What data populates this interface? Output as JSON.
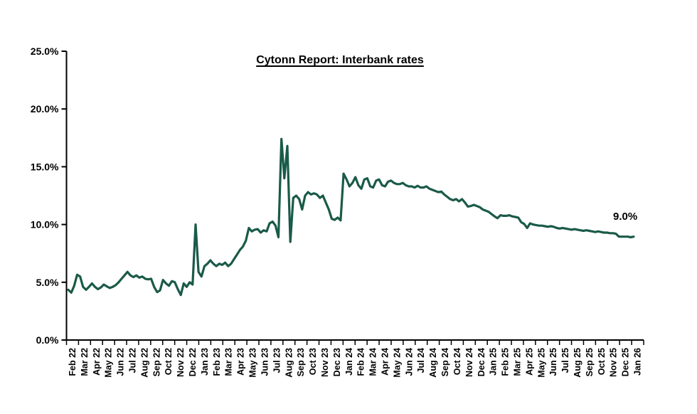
{
  "page": {
    "background": "#ffffff"
  },
  "chart_data": {
    "type": "line",
    "title": "Cytonn Report: Interbank rates",
    "xlabel": "",
    "ylabel": "",
    "ylim": [
      0,
      25
    ],
    "y_tick_step": 5,
    "y_tick_labels": [
      "0.0%",
      "5.0%",
      "10.0%",
      "15.0%",
      "20.0%",
      "25.0%"
    ],
    "grid": false,
    "legend": "none",
    "axis_color": "#000000",
    "annotation": {
      "text": "9.0%",
      "value": 9.0,
      "position": "end-of-line"
    },
    "x_labels": [
      "Feb 22",
      "Mar 22",
      "Apr 22",
      "May 22",
      "Jun 22",
      "Jul 22",
      "Aug 22",
      "Sep 22",
      "Oct 22",
      "Nov 22",
      "Dec 22",
      "Jan 23",
      "Feb 23",
      "Mar 23",
      "Apr 23",
      "May 23",
      "Jun 23",
      "Jul 23",
      "Aug 23",
      "Sep 23",
      "Oct 23",
      "Nov 23",
      "Dec 23",
      "Jan 24",
      "Feb 24",
      "Mar 24",
      "Apr 24",
      "May 24",
      "Jun 24",
      "Jul 24",
      "Aug 24",
      "Sep 24",
      "Oct 24",
      "Nov 24",
      "Dec 24",
      "Jan 25",
      "Feb 25",
      "Mar 25",
      "Apr 25",
      "May 25",
      "Jun 25",
      "Jul 25",
      "Aug 25",
      "Sep 25",
      "Oct 25",
      "Nov 25",
      "Dec 25",
      "Jan 26"
    ],
    "points_per_label": 4,
    "series": [
      {
        "name": "Interbank rate (%)",
        "color": "#1a5a48",
        "values": [
          4.35,
          4.1,
          4.7,
          5.65,
          5.5,
          4.6,
          4.35,
          4.6,
          4.9,
          4.6,
          4.4,
          4.55,
          4.8,
          4.65,
          4.5,
          4.6,
          4.75,
          5.0,
          5.3,
          5.6,
          5.9,
          5.6,
          5.45,
          5.6,
          5.4,
          5.5,
          5.3,
          5.25,
          5.3,
          4.6,
          4.15,
          4.3,
          5.2,
          4.9,
          4.7,
          5.1,
          5.0,
          4.4,
          3.9,
          4.9,
          4.6,
          5.0,
          4.8,
          10.0,
          5.9,
          5.5,
          6.4,
          6.6,
          6.9,
          6.6,
          6.4,
          6.6,
          6.5,
          6.7,
          6.4,
          6.6,
          7.0,
          7.4,
          7.8,
          8.1,
          8.6,
          9.7,
          9.4,
          9.55,
          9.6,
          9.3,
          9.5,
          9.4,
          10.1,
          10.25,
          9.9,
          8.9,
          17.4,
          14.0,
          16.8,
          8.5,
          12.3,
          12.5,
          12.2,
          11.3,
          12.5,
          12.8,
          12.6,
          12.7,
          12.6,
          12.3,
          12.5,
          11.9,
          11.3,
          10.5,
          10.4,
          10.6,
          10.35,
          14.4,
          13.9,
          13.3,
          13.6,
          14.1,
          13.4,
          13.1,
          13.9,
          14.0,
          13.3,
          13.2,
          13.8,
          13.9,
          13.4,
          13.3,
          13.7,
          13.8,
          13.6,
          13.5,
          13.5,
          13.6,
          13.4,
          13.3,
          13.3,
          13.2,
          13.35,
          13.2,
          13.2,
          13.3,
          13.1,
          13.0,
          12.9,
          12.8,
          12.85,
          12.6,
          12.4,
          12.2,
          12.1,
          12.2,
          12.0,
          12.2,
          11.9,
          11.55,
          11.6,
          11.7,
          11.6,
          11.5,
          11.3,
          11.2,
          11.1,
          10.9,
          10.7,
          10.55,
          10.8,
          10.75,
          10.75,
          10.8,
          10.7,
          10.65,
          10.6,
          10.2,
          10.05,
          9.7,
          10.1,
          10.0,
          9.95,
          9.9,
          9.9,
          9.85,
          9.8,
          9.85,
          9.8,
          9.7,
          9.65,
          9.7,
          9.65,
          9.6,
          9.55,
          9.6,
          9.55,
          9.5,
          9.45,
          9.5,
          9.45,
          9.4,
          9.35,
          9.4,
          9.35,
          9.3,
          9.3,
          9.25,
          9.25,
          9.2,
          8.95,
          8.95,
          8.95,
          8.95,
          8.9,
          8.95
        ]
      }
    ]
  }
}
